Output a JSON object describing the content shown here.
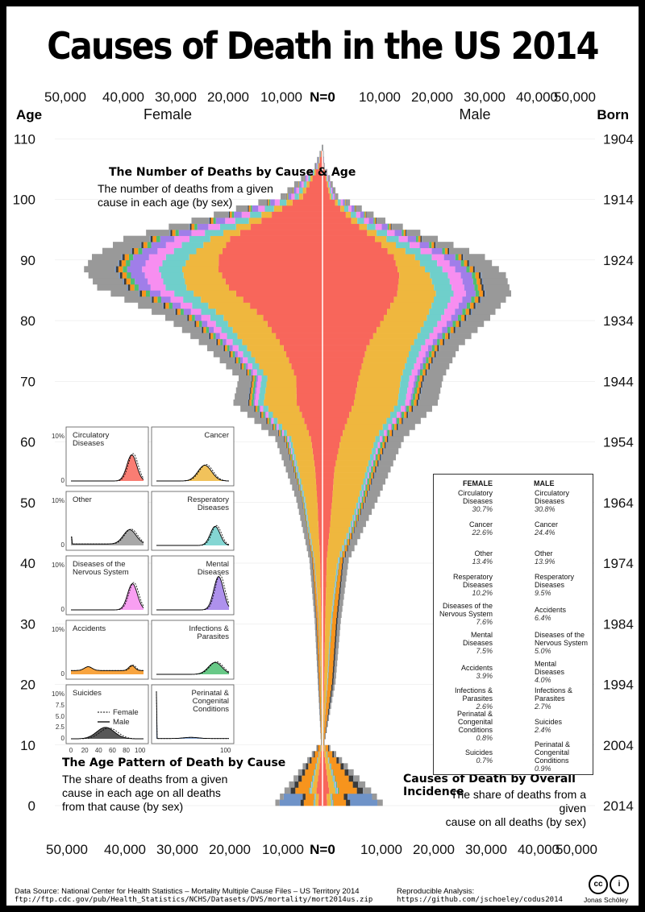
{
  "title": "Causes of Death in the US 2014",
  "axis": {
    "age_header": "Age",
    "born_header": "Born",
    "female_label": "Female",
    "male_label": "Male",
    "count_ticks_left": [
      "50,000",
      "40,000",
      "30,000",
      "20,000",
      "10,000"
    ],
    "count_zero": "N=0",
    "count_ticks_right": [
      "10,000",
      "20,000",
      "30,000",
      "40,000",
      "50,000"
    ],
    "age_ticks": [
      "110",
      "100",
      "90",
      "80",
      "70",
      "60",
      "50",
      "40",
      "30",
      "20",
      "10",
      "0"
    ],
    "born_ticks": [
      "1904",
      "1914",
      "1924",
      "1934",
      "1944",
      "1954",
      "1964",
      "1974",
      "1984",
      "1994",
      "2004",
      "2014"
    ]
  },
  "annotations": {
    "pyramid_title": "The Number of Deaths by Cause & Age",
    "pyramid_body": [
      "The number of deaths from a given",
      "cause in each age (by sex)"
    ],
    "age_pattern_title": "The Age Pattern of Death by Cause",
    "age_pattern_body": [
      "The share of deaths from a given",
      "cause in each age on all deaths",
      "from that cause (by sex)"
    ],
    "incidence_title": "Causes of Death by Overall Incidence",
    "incidence_body": [
      "The share of deaths from a given",
      "cause on all deaths (by sex)"
    ]
  },
  "colors": {
    "circulatory": "#f8665b",
    "cancer": "#efb73e",
    "other": "#999999",
    "respiratory": "#6fcfcb",
    "nervous": "#f78ef0",
    "mental": "#a07ee9",
    "accidents": "#f7941d",
    "infections": "#4dbf72",
    "suicides": "#3a3a3a",
    "perinatal": "#6f93c8"
  },
  "chart_data": [
    {
      "type": "area",
      "subtype": "population-pyramid (stacked horizontal bars by age)",
      "title": "The Number of Deaths by Cause & Age",
      "xlabel": "",
      "ylabel": "Age",
      "xlim_female": [
        50000,
        0
      ],
      "xlim_male": [
        0,
        50000
      ],
      "ylim": [
        0,
        110
      ],
      "cause_order": [
        "circulatory",
        "cancer",
        "respiratory",
        "nervous",
        "mental",
        "infections",
        "accidents",
        "suicides",
        "perinatal",
        "other"
      ],
      "female_shape": [
        {
          "age": 0,
          "total": 9000
        },
        {
          "age": 10,
          "total": 300
        },
        {
          "age": 20,
          "total": 900
        },
        {
          "age": 30,
          "total": 1500
        },
        {
          "age": 40,
          "total": 2500
        },
        {
          "age": 50,
          "total": 5000
        },
        {
          "age": 60,
          "total": 9000
        },
        {
          "age": 66,
          "total": 17000
        },
        {
          "age": 70,
          "total": 16000
        },
        {
          "age": 75,
          "total": 22000
        },
        {
          "age": 80,
          "total": 30000
        },
        {
          "age": 85,
          "total": 43000
        },
        {
          "age": 88,
          "total": 45500
        },
        {
          "age": 90,
          "total": 44000
        },
        {
          "age": 93,
          "total": 38000
        },
        {
          "age": 96,
          "total": 25000
        },
        {
          "age": 100,
          "total": 8000
        },
        {
          "age": 105,
          "total": 1500
        },
        {
          "age": 108,
          "total": 100
        }
      ],
      "male_shape": [
        {
          "age": 0,
          "total": 11500
        },
        {
          "age": 10,
          "total": 400
        },
        {
          "age": 20,
          "total": 2500
        },
        {
          "age": 30,
          "total": 3500
        },
        {
          "age": 40,
          "total": 5000
        },
        {
          "age": 50,
          "total": 10500
        },
        {
          "age": 60,
          "total": 15500
        },
        {
          "age": 66,
          "total": 22000
        },
        {
          "age": 70,
          "total": 23000
        },
        {
          "age": 75,
          "total": 26000
        },
        {
          "age": 80,
          "total": 32000
        },
        {
          "age": 84,
          "total": 36000
        },
        {
          "age": 87,
          "total": 35000
        },
        {
          "age": 90,
          "total": 31000
        },
        {
          "age": 93,
          "total": 22000
        },
        {
          "age": 96,
          "total": 12000
        },
        {
          "age": 100,
          "total": 3000
        },
        {
          "age": 105,
          "total": 400
        },
        {
          "age": 108,
          "total": 50
        }
      ]
    },
    {
      "type": "line",
      "title": "The Age Pattern of Death by Cause",
      "ylabels": [
        "10%",
        "0",
        "10%",
        "0",
        "10%",
        "0",
        "10%",
        "0",
        "10%",
        "7.5",
        "5.0",
        "2.5",
        "0"
      ],
      "x_ticks": [
        "0",
        "20",
        "40",
        "60",
        "80",
        "100"
      ],
      "x_ticks_right": [
        "100"
      ],
      "legend": [
        "Female",
        "Male"
      ],
      "panels": [
        {
          "key": "circulatory",
          "label": [
            "Circulatory",
            "Diseases"
          ],
          "align": "left",
          "peak_age": 88,
          "peak": 5.5,
          "kind": "old"
        },
        {
          "key": "cancer",
          "label": [
            "Cancer"
          ],
          "align": "right",
          "peak_age": 70,
          "peak": 3.3,
          "kind": "mid-old"
        },
        {
          "key": "other",
          "label": [
            "Other"
          ],
          "align": "left",
          "peak_age": 85,
          "peak": 3.0,
          "kind": "other"
        },
        {
          "key": "respiratory",
          "label": [
            "Resperatory",
            "Diseases"
          ],
          "align": "right",
          "peak_age": 85,
          "peak": 4.0,
          "kind": "old"
        },
        {
          "key": "nervous",
          "label": [
            "Diseases of the",
            "Nervous System"
          ],
          "align": "left",
          "peak_age": 89,
          "peak": 5.5,
          "kind": "old"
        },
        {
          "key": "mental",
          "label": [
            "Mental",
            "Diseases"
          ],
          "align": "right",
          "peak_age": 90,
          "peak": 7.0,
          "kind": "old"
        },
        {
          "key": "accidents",
          "label": [
            "Accidents"
          ],
          "align": "left",
          "peak_age": 88,
          "peak": 1.8,
          "kind": "accidents"
        },
        {
          "key": "infections",
          "label": [
            "Infections &",
            "Parasites"
          ],
          "align": "right",
          "peak_age": 85,
          "peak": 2.5,
          "kind": "mid-old"
        },
        {
          "key": "suicides",
          "label": [
            "Suicides"
          ],
          "align": "left",
          "peak_age": 50,
          "peak": 2.4,
          "kind": "suicides"
        },
        {
          "key": "perinatal",
          "label": [
            "Perinatal &",
            "Congenital",
            "Conditions"
          ],
          "align": "right",
          "peak_age": 0,
          "peak": 10,
          "kind": "perinatal"
        }
      ]
    },
    {
      "type": "line",
      "subtype": "slopegraph",
      "title": "Causes of Death by Overall Incidence",
      "headers": [
        "FEMALE",
        "MALE"
      ],
      "female": [
        {
          "key": "circulatory",
          "label": [
            "Circulatory",
            "Diseases"
          ],
          "pct": "30.7%",
          "rank": 1
        },
        {
          "key": "cancer",
          "label": [
            "Cancer"
          ],
          "pct": "22.6%",
          "rank": 2
        },
        {
          "key": "other",
          "label": [
            "Other"
          ],
          "pct": "13.4%",
          "rank": 3
        },
        {
          "key": "respiratory",
          "label": [
            "Resperatory",
            "Diseases"
          ],
          "pct": "10.2%",
          "rank": 4
        },
        {
          "key": "nervous",
          "label": [
            "Diseases of the",
            "Nervous System"
          ],
          "pct": "7.6%",
          "rank": 5
        },
        {
          "key": "mental",
          "label": [
            "Mental",
            "Diseases"
          ],
          "pct": "7.5%",
          "rank": 6
        },
        {
          "key": "accidents",
          "label": [
            "Accidents"
          ],
          "pct": "3.9%",
          "rank": 7
        },
        {
          "key": "infections",
          "label": [
            "Infections &",
            "Parasites"
          ],
          "pct": "2.6%",
          "rank": 8
        },
        {
          "key": "perinatal",
          "label": [
            "Perinatal &",
            "Congenital",
            "Conditions"
          ],
          "pct": "0.8%",
          "rank": 9
        },
        {
          "key": "suicides",
          "label": [
            "Suicides"
          ],
          "pct": "0.7%",
          "rank": 10
        }
      ],
      "male": [
        {
          "key": "circulatory",
          "label": [
            "Circulatory",
            "Diseases"
          ],
          "pct": "30.8%",
          "rank": 1
        },
        {
          "key": "cancer",
          "label": [
            "Cancer"
          ],
          "pct": "24.4%",
          "rank": 2
        },
        {
          "key": "other",
          "label": [
            "Other"
          ],
          "pct": "13.9%",
          "rank": 3
        },
        {
          "key": "respiratory",
          "label": [
            "Resperatory",
            "Diseases"
          ],
          "pct": "9.5%",
          "rank": 4
        },
        {
          "key": "accidents",
          "label": [
            "Accidents"
          ],
          "pct": "6.4%",
          "rank": 5
        },
        {
          "key": "nervous",
          "label": [
            "Diseases of the",
            "Nervous System"
          ],
          "pct": "5.0%",
          "rank": 6
        },
        {
          "key": "mental",
          "label": [
            "Mental",
            "Diseases"
          ],
          "pct": "4.0%",
          "rank": 7
        },
        {
          "key": "infections",
          "label": [
            "Infections &",
            "Parasites"
          ],
          "pct": "2.7%",
          "rank": 8
        },
        {
          "key": "suicides",
          "label": [
            "Suicides"
          ],
          "pct": "2.4%",
          "rank": 9
        },
        {
          "key": "perinatal",
          "label": [
            "Perinatal &",
            "Congenital",
            "Conditions"
          ],
          "pct": "0.9%",
          "rank": 10
        }
      ]
    }
  ],
  "footer": {
    "data_source": "Data Source: National Center for Health Statistics – Mortality Multiple Cause Files – US Territory 2014",
    "data_url": "ftp://ftp.cdc.gov/pub/Health_Statistics/NCHS/Datasets/DVS/mortality/mort2014us.zip",
    "analysis_label": "Reproducible Analysis:",
    "analysis_url": "https://github.com/jschoeley/codus2014",
    "author": "Jonas Schöley",
    "cc_text": "cc",
    "by_text": "i"
  }
}
